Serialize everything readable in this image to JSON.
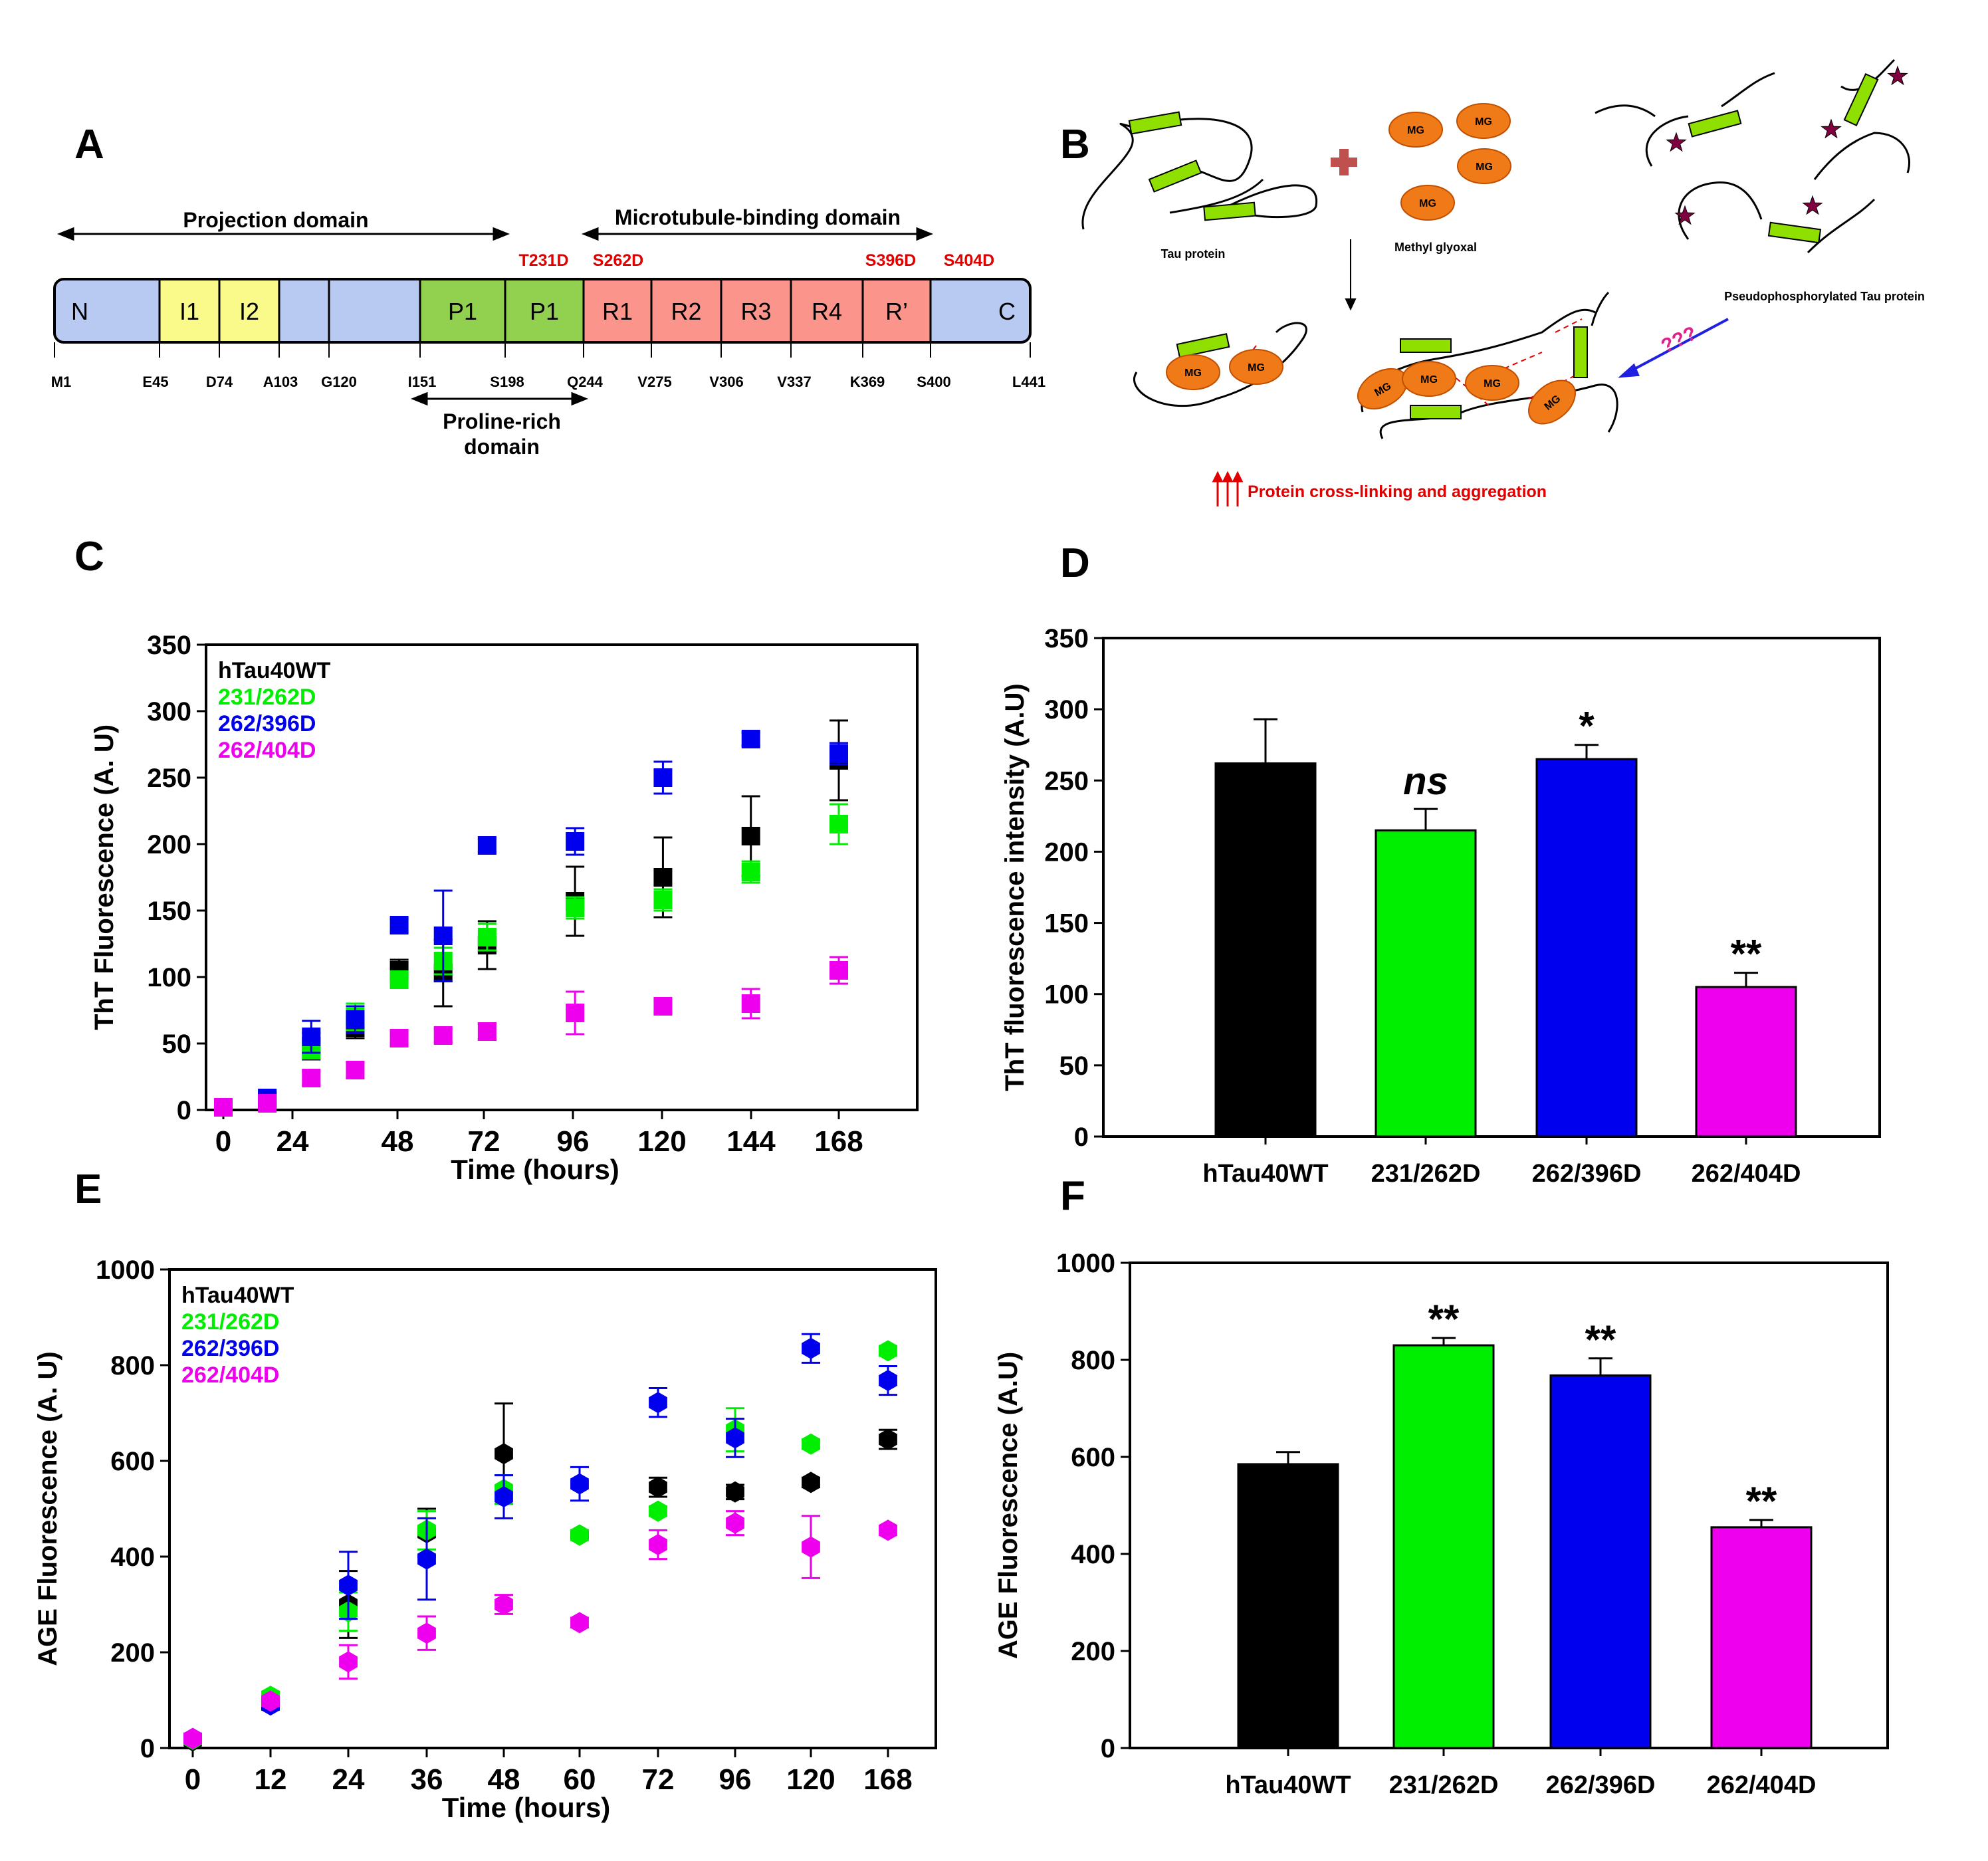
{
  "panels": {
    "a": "A",
    "b": "B",
    "c": "C",
    "d": "D",
    "e": "E",
    "f": "F"
  },
  "colors": {
    "wt": "#000000",
    "m231": "#00ee00",
    "m396": "#0000ee",
    "m404": "#ee00ee",
    "domain_blue": "#b8caf2",
    "domain_yellow": "#fafa8a",
    "domain_green": "#92d050",
    "domain_red": "#fb948a",
    "mutation_red": "#e00000",
    "helix": "#8fe000",
    "mg": "#f07a18"
  },
  "panel_a": {
    "projection": "Projection domain",
    "mtb": "Microtubule-binding domain",
    "proline_line1": "Proline-rich",
    "proline_line2": "domain",
    "segments": [
      {
        "label": "N",
        "color": "blue"
      },
      {
        "label": "I1",
        "color": "yellow"
      },
      {
        "label": "I2",
        "color": "yellow"
      },
      {
        "label": "",
        "color": "blue"
      },
      {
        "label": "",
        "color": "blue"
      },
      {
        "label": "P1",
        "color": "green"
      },
      {
        "label": "P1",
        "color": "green"
      },
      {
        "label": "R1",
        "color": "red"
      },
      {
        "label": "R2",
        "color": "red"
      },
      {
        "label": "R3",
        "color": "red"
      },
      {
        "label": "R4",
        "color": "red"
      },
      {
        "label": "R’",
        "color": "red"
      },
      {
        "label": "C",
        "color": "blue"
      }
    ],
    "residues_low": [
      "M1",
      "E45",
      "D74",
      "A103",
      "G120",
      "I151",
      "S198",
      "Q244",
      "V275",
      "V306",
      "V337",
      "K369",
      "S400",
      "L441"
    ],
    "mutations": [
      "T231D",
      "S262D",
      "S396D",
      "S404D"
    ]
  },
  "panel_b": {
    "tau": "Tau protein",
    "mgox": "Methyl glyoxal",
    "mg": "MG",
    "pseudo": "Pseudophosphorylated Tau protein",
    "question": "???",
    "crosslink": "Protein cross-linking and aggregation"
  },
  "chart_data": [
    {
      "id": "C",
      "type": "scatter",
      "xlabel": "Time (hours)",
      "ylabel": "ThT Fluorescence (A. U)",
      "xlim": [
        0,
        168
      ],
      "ylim": [
        0,
        350
      ],
      "xticks": [
        0,
        24,
        48,
        72,
        96,
        120,
        144,
        168
      ],
      "yticks": [
        0,
        50,
        100,
        150,
        200,
        250,
        300,
        350
      ],
      "marker": "square",
      "legend": "top-left",
      "x": [
        0,
        12,
        24,
        36,
        48,
        60,
        72,
        96,
        120,
        144,
        168
      ],
      "series": [
        {
          "name": "hTau40WT",
          "color": "#000000",
          "values": [
            2,
            7,
            48,
            62,
            105,
            103,
            124,
            157,
            175,
            206,
            263
          ],
          "errors": [
            4,
            4,
            10,
            8,
            8,
            25,
            18,
            26,
            30,
            30,
            30
          ]
        },
        {
          "name": "231/262D",
          "color": "#00ee00",
          "values": [
            2,
            9,
            45,
            70,
            98,
            112,
            130,
            152,
            158,
            179,
            215
          ],
          "errors": [
            3,
            4,
            6,
            10,
            5,
            10,
            10,
            8,
            8,
            8,
            15
          ]
        },
        {
          "name": "262/396D",
          "color": "#0000ee",
          "values": [
            2,
            9,
            55,
            68,
            139,
            131,
            199,
            202,
            250,
            279,
            268
          ],
          "errors": [
            3,
            4,
            12,
            10,
            5,
            34,
            5,
            10,
            12,
            5,
            8
          ]
        },
        {
          "name": "262/404D",
          "color": "#ee00ee",
          "values": [
            2,
            5,
            24,
            30,
            54,
            56,
            59,
            73,
            78,
            80,
            105
          ],
          "errors": [
            3,
            3,
            5,
            6,
            5,
            5,
            6,
            16,
            5,
            11,
            10
          ]
        }
      ]
    },
    {
      "id": "D",
      "type": "bar",
      "ylabel": "ThT fluorescence intensity (A.U)",
      "ylim": [
        0,
        350
      ],
      "yticks": [
        0,
        50,
        100,
        150,
        200,
        250,
        300,
        350
      ],
      "categories": [
        "hTau40WT",
        "231/262D",
        "262/396D",
        "262/404D"
      ],
      "values": [
        262,
        215,
        265,
        105
      ],
      "errors": [
        31,
        15,
        10,
        10
      ],
      "annotations": [
        "",
        "ns",
        "*",
        "**"
      ],
      "colors": [
        "#000000",
        "#00ee00",
        "#0000ee",
        "#ee00ee"
      ]
    },
    {
      "id": "E",
      "type": "scatter",
      "xlabel": "Time (hours)",
      "ylabel": "AGE Fluorescence (A. U)",
      "ylim": [
        0,
        1000
      ],
      "xticks": [
        0,
        12,
        24,
        36,
        48,
        60,
        72,
        96,
        120,
        168
      ],
      "yticks": [
        0,
        200,
        400,
        600,
        800,
        1000
      ],
      "marker": "hexagon",
      "legend": "top-left",
      "x": [
        0,
        12,
        24,
        36,
        48,
        60,
        72,
        96,
        120,
        168
      ],
      "series": [
        {
          "name": "hTau40WT",
          "color": "#000000",
          "values": [
            15,
            92,
            300,
            450,
            615,
            445,
            545,
            535,
            555,
            645
          ],
          "errors": [
            15,
            10,
            70,
            50,
            105,
            10,
            20,
            15,
            10,
            20
          ]
        },
        {
          "name": "231/262D",
          "color": "#00ee00",
          "values": [
            18,
            108,
            285,
            455,
            540,
            445,
            495,
            665,
            635,
            830
          ],
          "errors": [
            10,
            10,
            40,
            40,
            30,
            10,
            10,
            45,
            10,
            10
          ]
        },
        {
          "name": "262/396D",
          "color": "#0000ee",
          "values": [
            20,
            90,
            340,
            395,
            525,
            552,
            722,
            648,
            835,
            768
          ],
          "errors": [
            10,
            10,
            70,
            85,
            45,
            35,
            30,
            40,
            30,
            30
          ]
        },
        {
          "name": "262/404D",
          "color": "#ee00ee",
          "values": [
            20,
            98,
            180,
            240,
            300,
            262,
            425,
            470,
            420,
            455
          ],
          "errors": [
            10,
            10,
            35,
            35,
            20,
            10,
            30,
            25,
            65,
            10
          ]
        }
      ]
    },
    {
      "id": "F",
      "type": "bar",
      "ylabel": "AGE Fluorescence (A.U)",
      "ylim": [
        0,
        1000
      ],
      "yticks": [
        0,
        200,
        400,
        600,
        800,
        1000
      ],
      "categories": [
        "hTau40WT",
        "231/262D",
        "262/396D",
        "262/404D"
      ],
      "values": [
        585,
        830,
        768,
        455
      ],
      "errors": [
        25,
        15,
        35,
        15
      ],
      "annotations": [
        "",
        "**",
        "**",
        "**"
      ],
      "colors": [
        "#000000",
        "#00ee00",
        "#0000ee",
        "#ee00ee"
      ]
    }
  ]
}
